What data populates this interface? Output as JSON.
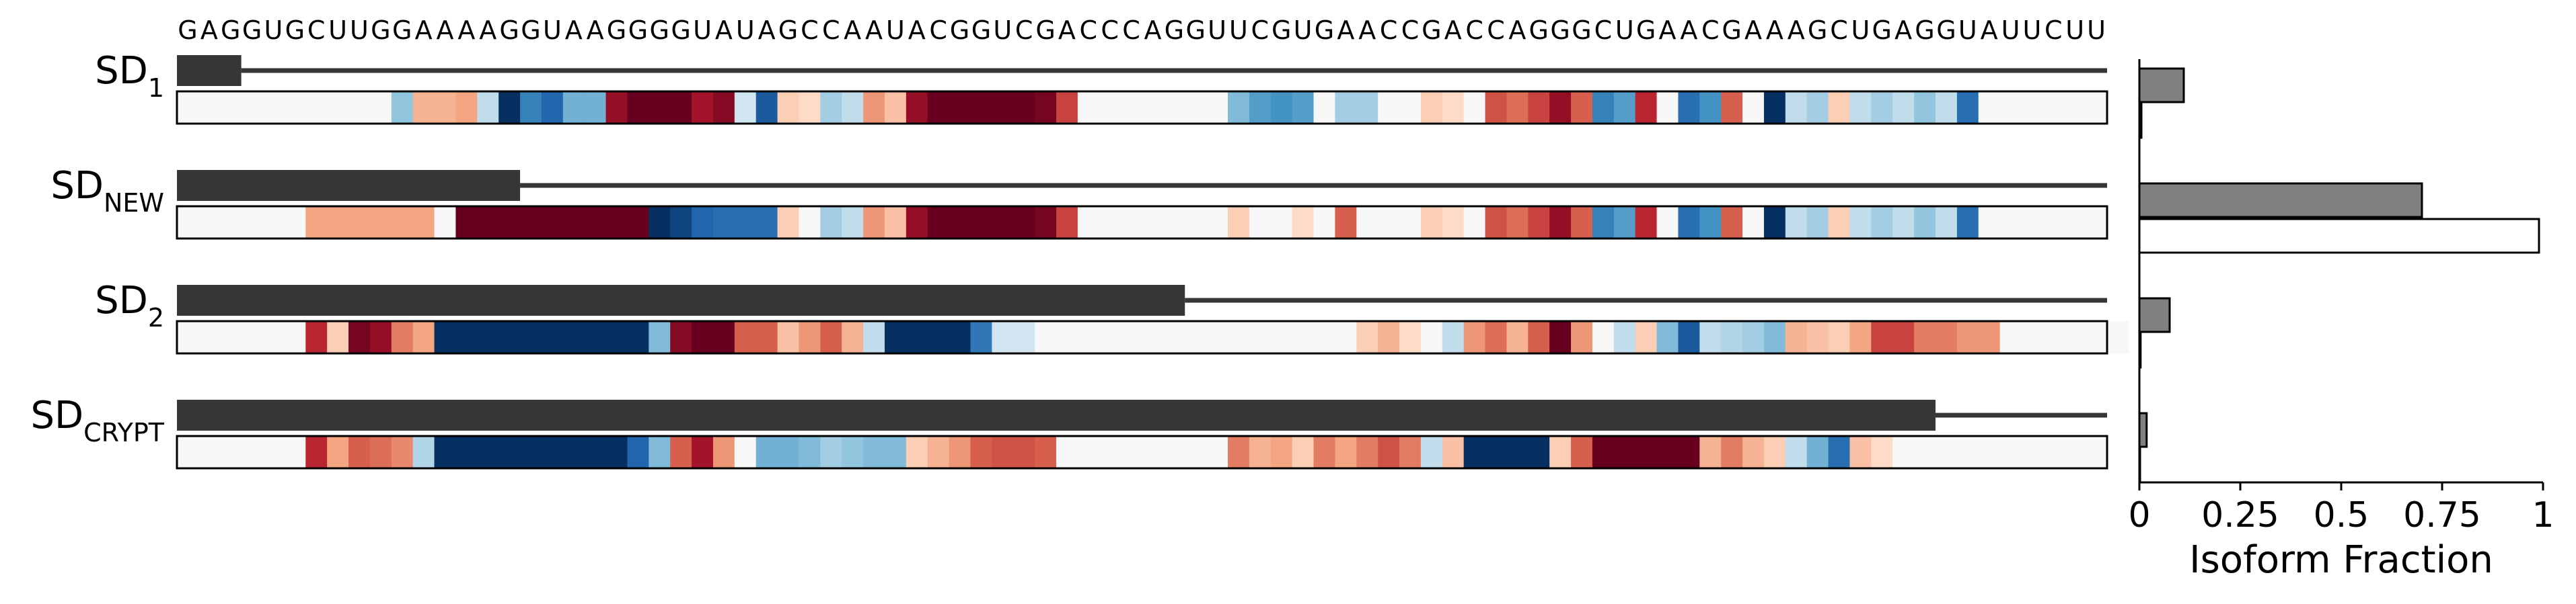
{
  "chart_data": {
    "type": "bar",
    "sequence": "GAGGUGCUUGGAAAAGGUAAGGGGUAUAGCCAAUACGGUCGACCCAGGUUCGUGAACCGACCAGGGCUGAACGAAAGCUGAGGUAUUCUU",
    "rows": [
      {
        "base": "SD",
        "sub": "1",
        "exon_end_pos": 3,
        "value_gray": 0.11,
        "value_white": 0.005,
        "heat": [
          0,
          0,
          0,
          0,
          0,
          0,
          0,
          0,
          0,
          0,
          -0.25,
          0.2,
          0.2,
          0.25,
          -0.1,
          -1,
          -0.6,
          -0.75,
          -0.35,
          -0.35,
          0.85,
          1,
          1,
          1,
          0.8,
          0.9,
          -0.05,
          -0.8,
          0.1,
          0.05,
          -0.2,
          -0.1,
          0.3,
          0.15,
          0.85,
          1,
          1,
          1,
          1,
          1,
          0.95,
          0.6,
          0,
          0,
          0,
          0,
          0,
          0,
          0,
          -0.3,
          -0.45,
          -0.5,
          -0.45,
          0,
          -0.2,
          -0.2,
          0,
          0,
          0.1,
          0.05,
          0,
          0.55,
          0.45,
          0.6,
          0.85,
          0.5,
          -0.6,
          -0.45,
          0.7,
          0,
          -0.7,
          -0.5,
          0.5,
          0,
          -1,
          -0.1,
          -0.2,
          0.1,
          -0.1,
          -0.2,
          -0.1,
          -0.25,
          -0.1,
          -0.7,
          0,
          0,
          0,
          0,
          0,
          0
        ]
      },
      {
        "base": "SD",
        "sub": "NEW",
        "exon_end_pos": 16,
        "value_gray": 0.7,
        "value_white": 0.99,
        "heat": [
          0,
          0,
          0,
          0,
          0,
          0,
          0.25,
          0.25,
          0.25,
          0.25,
          0.25,
          0.25,
          0,
          1,
          1,
          1,
          1,
          1,
          1,
          1,
          1,
          1,
          -1,
          -0.9,
          -0.75,
          -0.7,
          -0.7,
          -0.7,
          0.1,
          0,
          -0.2,
          -0.1,
          0.3,
          0.15,
          0.85,
          1,
          1,
          1,
          1,
          1,
          0.95,
          0.6,
          0,
          0,
          0,
          0,
          0,
          0,
          0,
          0.1,
          0,
          0,
          0.05,
          0,
          0.5,
          0,
          0,
          0,
          0.1,
          0.05,
          0,
          0.55,
          0.45,
          0.6,
          0.85,
          0.5,
          -0.6,
          -0.45,
          0.7,
          0,
          -0.7,
          -0.5,
          0.5,
          0,
          -1,
          -0.1,
          -0.2,
          0.1,
          -0.1,
          -0.2,
          -0.1,
          -0.25,
          -0.1,
          -0.7,
          0,
          0,
          0,
          0,
          0,
          0
        ]
      },
      {
        "base": "SD",
        "sub": "2",
        "exon_end_pos": 47,
        "value_gray": 0.075,
        "value_white": 0.003,
        "heat": [
          0,
          0,
          0,
          0,
          0,
          0,
          0.7,
          0.1,
          0.95,
          0.85,
          0.4,
          0.25,
          -1,
          -1,
          -1,
          -1,
          -1,
          -1,
          -1,
          -1,
          -1,
          -1,
          -0.3,
          0.9,
          1,
          1,
          0.5,
          0.5,
          0.15,
          0.3,
          0.5,
          0.2,
          -0.1,
          -1,
          -1,
          -1,
          -1,
          -0.65,
          -0.05,
          -0.05,
          0,
          0,
          0,
          0,
          0,
          0,
          0,
          0,
          0,
          0,
          0,
          0,
          0,
          0,
          0,
          0.1,
          0.2,
          0.05,
          0,
          -0.1,
          0.3,
          0.45,
          0.2,
          0.5,
          1,
          0.3,
          0,
          -0.1,
          0.1,
          -0.3,
          -0.8,
          -0.1,
          -0.15,
          -0.2,
          -0.3,
          0.2,
          0.15,
          0.1,
          0.25,
          0.6,
          0.6,
          0.4,
          0.4,
          0.3,
          0.3,
          0,
          0,
          0,
          0,
          0,
          0
        ]
      },
      {
        "base": "SD",
        "sub": "CRYPT",
        "exon_end_pos": 82,
        "value_gray": 0.018,
        "value_white": 0,
        "heat": [
          0,
          0,
          0,
          0,
          0,
          0,
          0.7,
          0.25,
          0.5,
          0.45,
          0.35,
          -0.15,
          -1,
          -1,
          -1,
          -1,
          -1,
          -1,
          -1,
          -1,
          -1,
          -0.75,
          -0.3,
          0.5,
          0.8,
          0.3,
          0,
          -0.35,
          -0.35,
          -0.3,
          -0.2,
          -0.25,
          -0.3,
          -0.3,
          0.1,
          0.2,
          0.3,
          0.5,
          0.55,
          0.55,
          0.5,
          0,
          0,
          0,
          0,
          0,
          0,
          0,
          0,
          0.4,
          0.2,
          0.25,
          0.1,
          0.4,
          0.25,
          0.4,
          0.55,
          0.4,
          -0.1,
          0.15,
          -1,
          -1,
          -1,
          -1,
          0.1,
          0.5,
          1,
          1,
          1,
          1,
          1,
          0.2,
          0.4,
          0.2,
          0.1,
          -0.1,
          -0.35,
          -0.7,
          0.15,
          0.05,
          0,
          0,
          0,
          0,
          0,
          0,
          0,
          0,
          0,
          0
        ]
      }
    ],
    "xticks": [
      "0",
      "0.25",
      "0.5",
      "0.75",
      "1"
    ],
    "xlim": [
      0,
      1
    ],
    "xlabel": "Isoform Fraction",
    "series": [
      {
        "name": "",
        "color": "#808080"
      },
      {
        "name": "",
        "color": "#ffffff"
      }
    ],
    "heatmap_colormap": "RdBu_r"
  }
}
